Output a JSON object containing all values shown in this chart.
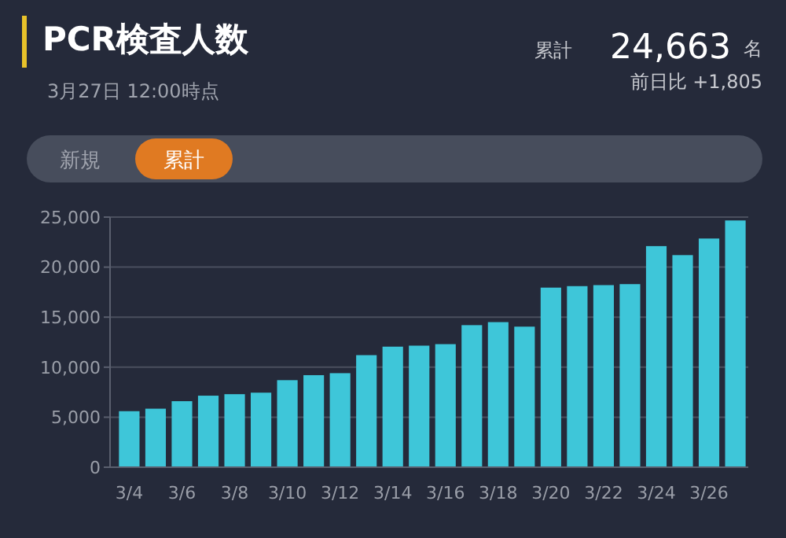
{
  "chart_data": {
    "type": "bar",
    "title": "PCR検査人数",
    "subtitle": "3月27日 12:00時点",
    "annotations": [
      "累計",
      "24,663",
      "名",
      "前日比 +1,805",
      "新規",
      "累計"
    ],
    "categories": [
      "3/4",
      null,
      "3/6",
      null,
      "3/8",
      null,
      "3/10",
      null,
      "3/12",
      null,
      "3/14",
      null,
      "3/16",
      null,
      "3/18",
      null,
      "3/20",
      null,
      "3/22",
      null,
      "3/24",
      null,
      "3/26",
      null
    ],
    "values": [
      5600,
      5850,
      6600,
      7150,
      7300,
      7450,
      8700,
      9200,
      9400,
      11200,
      12050,
      12150,
      12300,
      14200,
      14500,
      14050,
      17950,
      18100,
      18200,
      18300,
      22100,
      21200,
      22858,
      24663
    ],
    "color": "#3ec6d9",
    "ylim": [
      0,
      25000
    ],
    "yticks": [
      {
        "value": 0,
        "label": "0"
      },
      {
        "value": 5000,
        "label": "5,000"
      },
      {
        "value": 10000,
        "label": "10,000"
      },
      {
        "value": 15000,
        "label": "15,000"
      },
      {
        "value": 20000,
        "label": "20,000"
      },
      {
        "value": 25000,
        "label": "25,000"
      }
    ],
    "grid": "y"
  }
}
